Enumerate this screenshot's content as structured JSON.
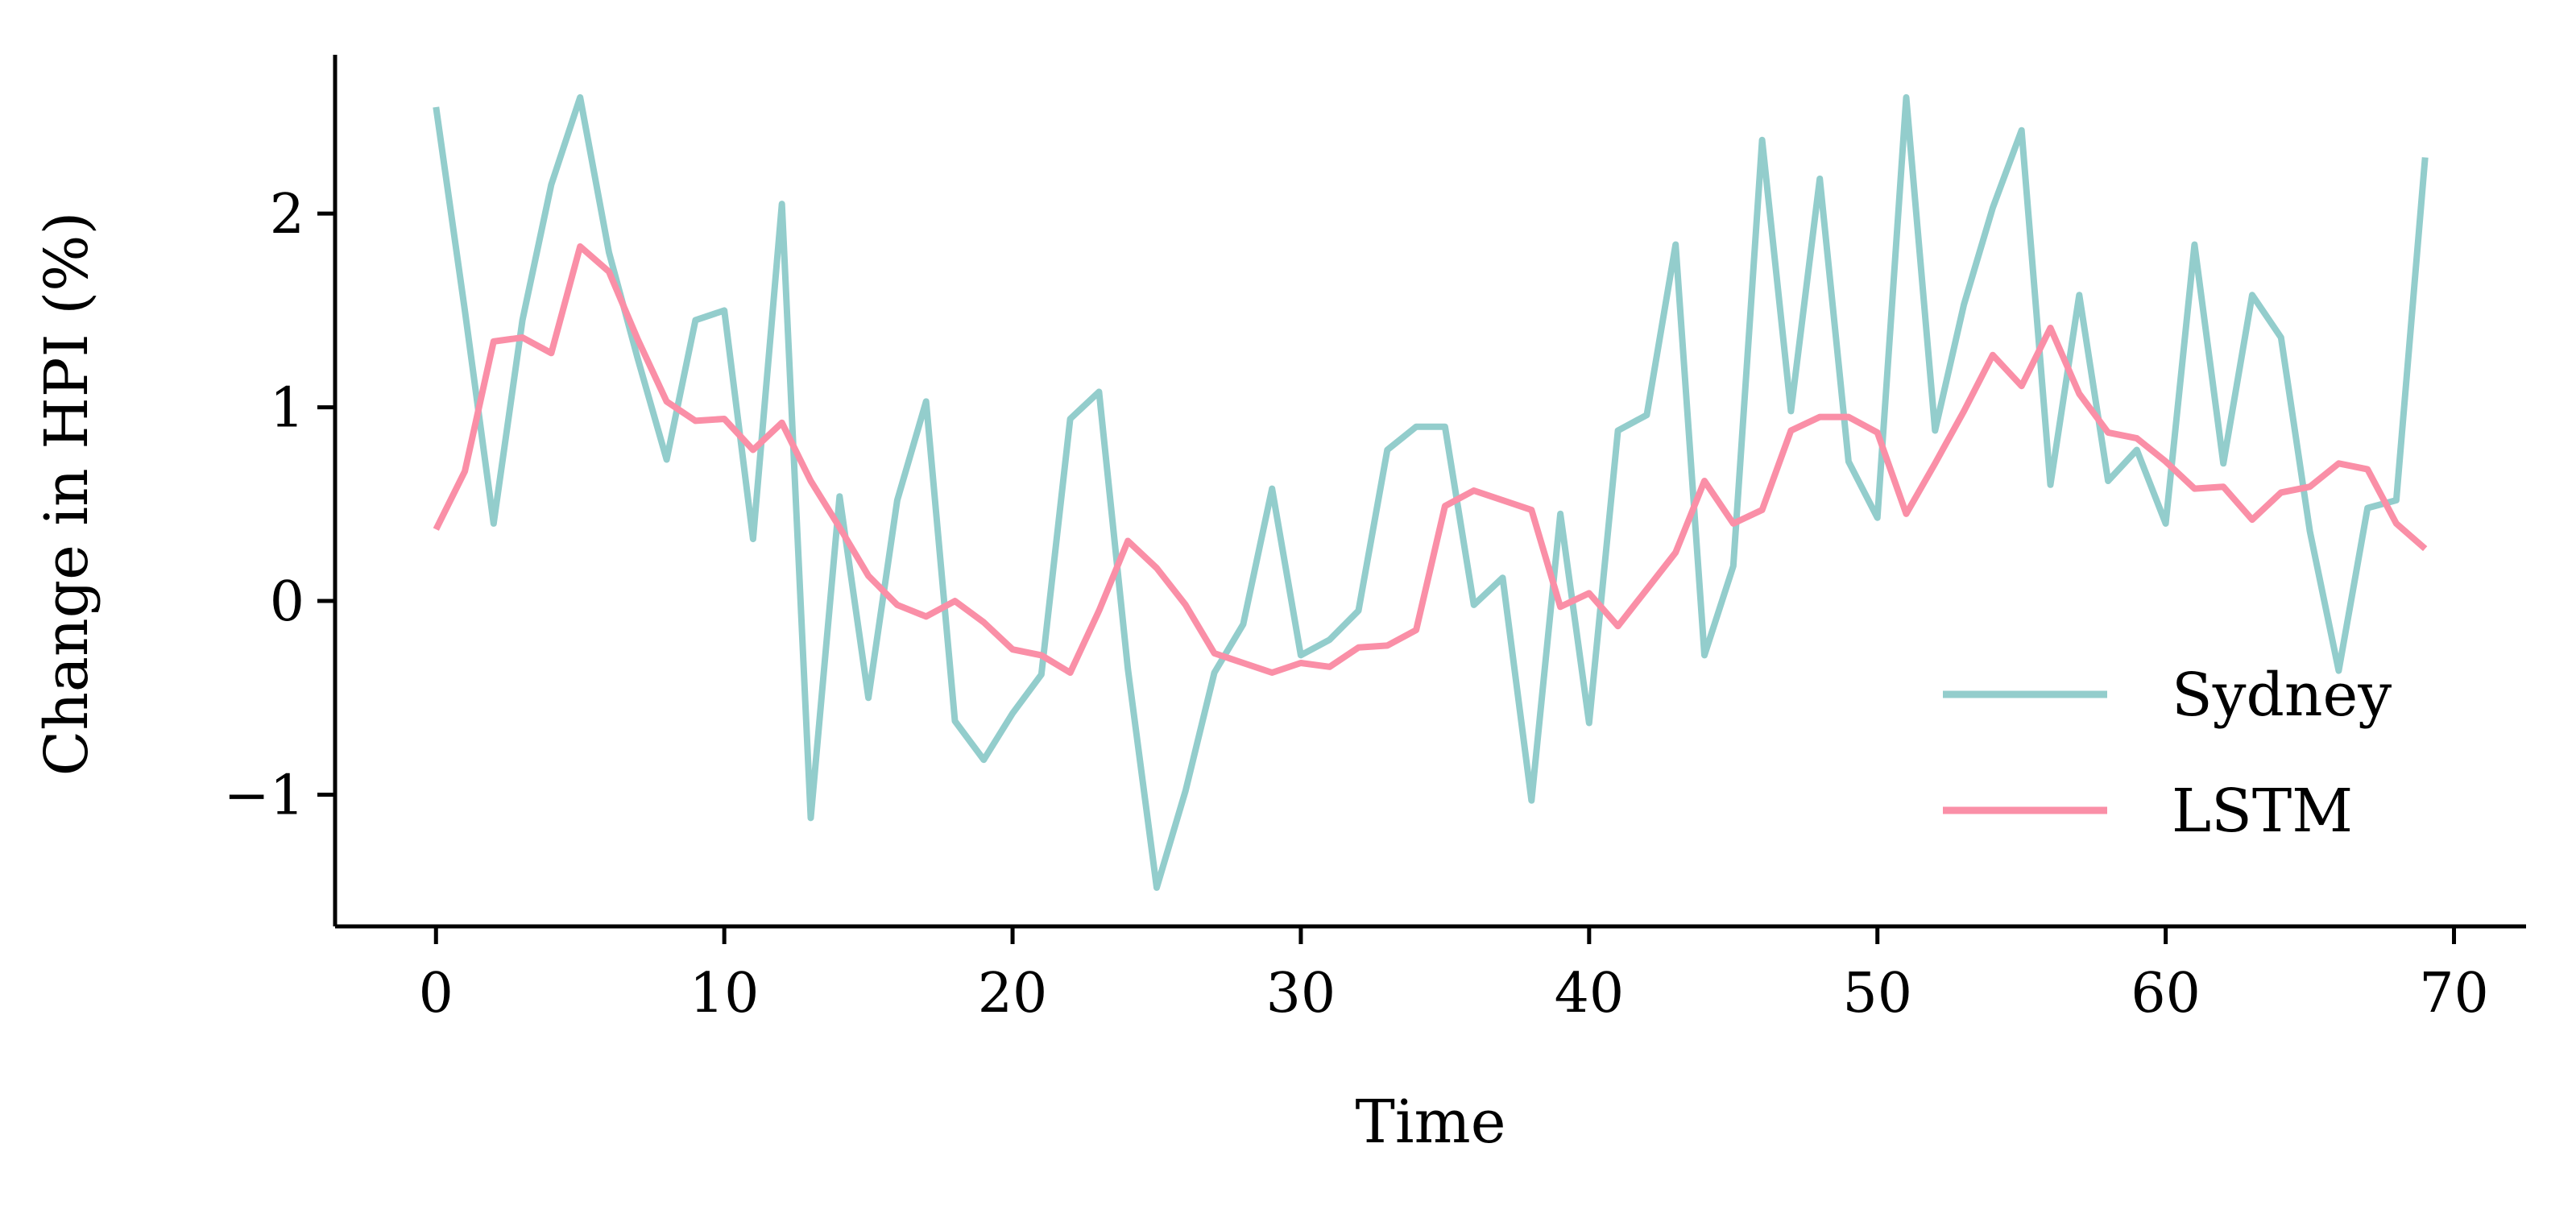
{
  "chart_data": {
    "type": "line",
    "title": "",
    "xlabel": "Time",
    "ylabel": "Change in HPI (%)",
    "xlim": [
      -3.5,
      72.5
    ],
    "ylim": [
      -1.68,
      2.82
    ],
    "xticks": [
      0,
      10,
      20,
      30,
      40,
      50,
      60,
      70
    ],
    "yticks": [
      -1,
      0,
      1,
      2
    ],
    "ytick_labels": [
      "−1",
      "0",
      "1",
      "2"
    ],
    "grid": false,
    "legend_position": "lower-right",
    "x": [
      0,
      1,
      2,
      3,
      4,
      5,
      6,
      7,
      8,
      9,
      10,
      11,
      12,
      13,
      14,
      15,
      16,
      17,
      18,
      19,
      20,
      21,
      22,
      23,
      24,
      25,
      26,
      27,
      28,
      29,
      30,
      31,
      32,
      33,
      34,
      35,
      36,
      37,
      38,
      39,
      40,
      41,
      42,
      43,
      44,
      45,
      46,
      47,
      48,
      49,
      50,
      51,
      52,
      53,
      54,
      55,
      56,
      57,
      58,
      59,
      60,
      61,
      62,
      63,
      64,
      65,
      66,
      67,
      68,
      69
    ],
    "series": [
      {
        "name": "Sydney",
        "color": "#93cdcc",
        "values": [
          2.55,
          1.5,
          0.4,
          1.45,
          2.15,
          2.6,
          1.8,
          1.25,
          0.73,
          1.45,
          1.5,
          0.32,
          2.05,
          -1.12,
          0.54,
          -0.5,
          0.52,
          1.03,
          -0.62,
          -0.82,
          -0.58,
          -0.38,
          0.94,
          1.08,
          -0.35,
          -1.48,
          -0.98,
          -0.37,
          -0.12,
          0.58,
          -0.28,
          -0.2,
          -0.05,
          0.78,
          0.9,
          0.9,
          -0.02,
          0.12,
          -1.03,
          0.45,
          -0.63,
          0.88,
          0.96,
          1.84,
          -0.28,
          0.18,
          2.38,
          0.98,
          2.18,
          0.72,
          0.43,
          2.6,
          0.88,
          1.53,
          2.03,
          2.43,
          0.6,
          1.58,
          0.62,
          0.78,
          0.4,
          1.84,
          0.71,
          1.58,
          1.36,
          0.36,
          -0.36,
          0.48,
          0.52,
          2.29
        ]
      },
      {
        "name": "LSTM",
        "color": "#fa8fa7",
        "values": [
          0.37,
          0.67,
          1.34,
          1.36,
          1.28,
          1.83,
          1.7,
          1.35,
          1.03,
          0.93,
          0.94,
          0.78,
          0.92,
          0.62,
          0.38,
          0.13,
          -0.02,
          -0.08,
          0.0,
          -0.11,
          -0.25,
          -0.28,
          -0.37,
          -0.05,
          0.31,
          0.17,
          -0.02,
          -0.27,
          -0.32,
          -0.37,
          -0.32,
          -0.34,
          -0.24,
          -0.23,
          -0.15,
          0.49,
          0.57,
          0.52,
          0.47,
          -0.03,
          0.04,
          -0.13,
          0.06,
          0.25,
          0.62,
          0.4,
          0.47,
          0.88,
          0.95,
          0.95,
          0.87,
          0.45,
          0.71,
          0.98,
          1.27,
          1.11,
          1.41,
          1.07,
          0.87,
          0.84,
          0.72,
          0.58,
          0.59,
          0.42,
          0.56,
          0.59,
          0.71,
          0.68,
          0.4,
          0.27
        ]
      }
    ]
  }
}
